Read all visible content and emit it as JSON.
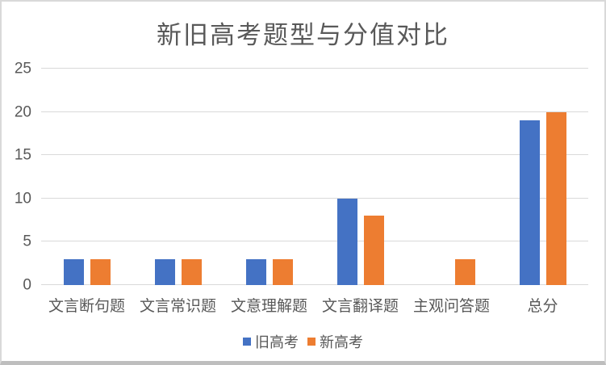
{
  "chart_data": {
    "type": "bar",
    "title": "新旧高考题型与分值对比",
    "categories": [
      "文言断句题",
      "文言常识题",
      "文意理解题",
      "文言翻译题",
      "主观问答题",
      "总分"
    ],
    "series": [
      {
        "name": "旧高考",
        "color": "#4472C4",
        "values": [
          3,
          3,
          3,
          10,
          0,
          19
        ]
      },
      {
        "name": "新高考",
        "color": "#ED7D31",
        "values": [
          3,
          3,
          3,
          8,
          3,
          20
        ]
      }
    ],
    "xlabel": "",
    "ylabel": "",
    "ylim": [
      0,
      25
    ],
    "yticks": [
      0,
      5,
      10,
      15,
      20,
      25
    ],
    "grid": "horizontal",
    "legend_position": "bottom"
  },
  "colors": {
    "grid": "#D9D9D9",
    "text": "#595959",
    "frame_border": "#D9D9D9",
    "frame_border_bottom": "#BEBEBE",
    "background": "#FFFFFF"
  }
}
